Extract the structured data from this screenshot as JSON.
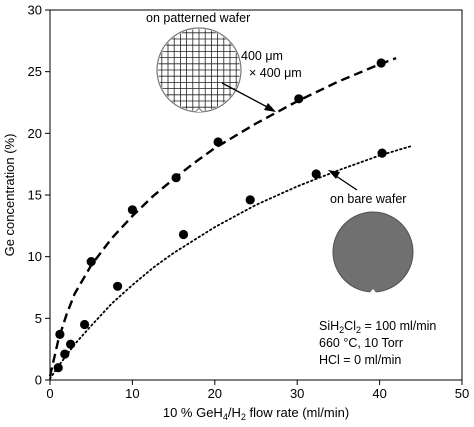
{
  "chart_data": {
    "type": "scatter",
    "title": "",
    "xlabel_parts": [
      "10 % GeH",
      "4",
      "/H",
      "2",
      " flow rate (ml/min)"
    ],
    "ylabel": "Ge concentration    (%)",
    "xlim": [
      0,
      50
    ],
    "ylim": [
      0,
      30
    ],
    "xticks": [
      "0",
      "10",
      "20",
      "30",
      "40",
      "50"
    ],
    "yticks": [
      "0",
      "5",
      "10",
      "15",
      "20",
      "25",
      "30"
    ],
    "grid": false,
    "series": [
      {
        "label": "on patterned wafer",
        "line_style": "dashed",
        "points": [
          [
            1.2,
            3.7
          ],
          [
            5.0,
            9.6
          ],
          [
            10.0,
            13.8
          ],
          [
            15.3,
            16.4
          ],
          [
            20.4,
            19.3
          ],
          [
            30.2,
            22.8
          ],
          [
            40.2,
            25.7
          ]
        ],
        "fit": [
          [
            0,
            0.3
          ],
          [
            1,
            3.2
          ],
          [
            2,
            5.3
          ],
          [
            3,
            7.0
          ],
          [
            5,
            9.3
          ],
          [
            7.5,
            11.5
          ],
          [
            10,
            13.3
          ],
          [
            12.5,
            14.9
          ],
          [
            15,
            16.3
          ],
          [
            17.5,
            17.6
          ],
          [
            20,
            18.8
          ],
          [
            25,
            20.8
          ],
          [
            30,
            22.6
          ],
          [
            35,
            24.2
          ],
          [
            40,
            25.6
          ],
          [
            42,
            26.1
          ]
        ]
      },
      {
        "label": "on bare wafer",
        "line_style": "dotted",
        "points": [
          [
            1.0,
            1.0
          ],
          [
            1.8,
            2.1
          ],
          [
            2.5,
            2.9
          ],
          [
            4.2,
            4.5
          ],
          [
            8.2,
            7.6
          ],
          [
            16.2,
            11.8
          ],
          [
            24.3,
            14.6
          ],
          [
            32.3,
            16.7
          ],
          [
            40.3,
            18.4
          ]
        ],
        "fit": [
          [
            0,
            0.1
          ],
          [
            1,
            1.1
          ],
          [
            2,
            2.0
          ],
          [
            3,
            2.9
          ],
          [
            5,
            4.4
          ],
          [
            7.5,
            6.2
          ],
          [
            10,
            7.7
          ],
          [
            12.5,
            9.1
          ],
          [
            15,
            10.3
          ],
          [
            20,
            12.4
          ],
          [
            25,
            14.2
          ],
          [
            30,
            15.7
          ],
          [
            35,
            17.0
          ],
          [
            40,
            18.2
          ],
          [
            44,
            19.0
          ]
        ]
      }
    ],
    "annotations": {
      "patterned_label": "on patterned wafer",
      "pattern_size_line1": "400 μm",
      "pattern_size_line2": "× 400 μm",
      "bare_label": "on bare wafer",
      "conditions": [
        "SiH2Cl2 = 100 ml/min",
        "660 °C,   10 Torr",
        "HCl = 0 ml/min"
      ]
    }
  }
}
